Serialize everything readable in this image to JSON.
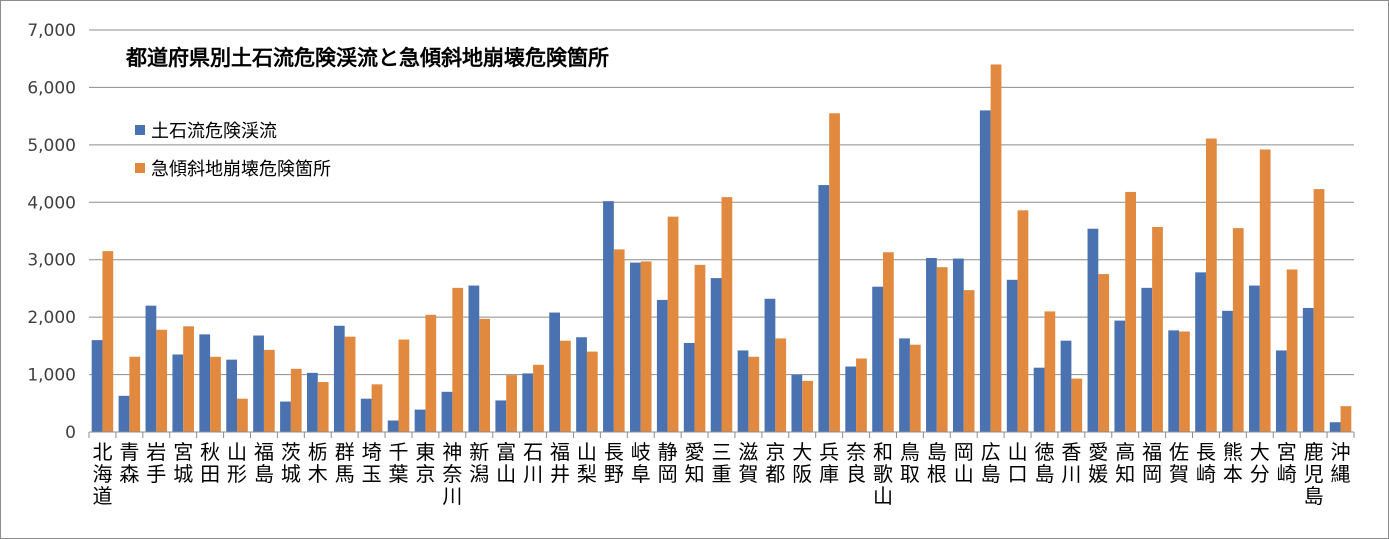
{
  "chart_data": {
    "type": "bar",
    "title": "都道府県別土石流危険渓流と急傾斜地崩壊危険箇所",
    "xlabel": "",
    "ylabel": "",
    "ylim": [
      0,
      7000
    ],
    "yticks": [
      "0",
      "1,000",
      "2,000",
      "3,000",
      "4,000",
      "5,000",
      "6,000",
      "7,000"
    ],
    "grid": true,
    "legend_position": "top-left",
    "colors": [
      "#4a72b0",
      "#e0893f"
    ],
    "categories": [
      "北海道",
      "青森",
      "岩手",
      "宮城",
      "秋田",
      "山形",
      "福島",
      "茨城",
      "栃木",
      "群馬",
      "埼玉",
      "千葉",
      "東京",
      "神奈川",
      "新潟",
      "富山",
      "石川",
      "福井",
      "山梨",
      "長野",
      "岐阜",
      "静岡",
      "愛知",
      "三重",
      "滋賀",
      "京都",
      "大阪",
      "兵庫",
      "奈良",
      "和歌山",
      "鳥取",
      "島根",
      "岡山",
      "広島",
      "山口",
      "徳島",
      "香川",
      "愛媛",
      "高知",
      "福岡",
      "佐賀",
      "長崎",
      "熊本",
      "大分",
      "宮崎",
      "鹿児島",
      "沖縄"
    ],
    "series": [
      {
        "name": "土石流危険渓流",
        "values": [
          1600,
          630,
          2200,
          1350,
          1700,
          1260,
          1680,
          530,
          1030,
          1850,
          580,
          200,
          390,
          700,
          2550,
          550,
          1020,
          2080,
          1650,
          4020,
          2950,
          2300,
          1550,
          2680,
          1420,
          2320,
          1000,
          4300,
          1140,
          2530,
          1630,
          3030,
          3020,
          5600,
          2650,
          1120,
          1590,
          3540,
          1940,
          2510,
          1770,
          2780,
          2110,
          2550,
          1420,
          2160,
          170
        ]
      },
      {
        "name": "急傾斜地崩壊危険箇所",
        "values": [
          3150,
          1310,
          1780,
          1840,
          1310,
          580,
          1430,
          1100,
          870,
          1660,
          830,
          1610,
          2040,
          2510,
          1970,
          990,
          1170,
          1590,
          1400,
          3180,
          2970,
          3750,
          2910,
          4090,
          1310,
          1630,
          890,
          5550,
          1280,
          3130,
          1520,
          2870,
          2470,
          6400,
          3860,
          2100,
          930,
          2750,
          4180,
          3570,
          1750,
          5110,
          3550,
          4920,
          2830,
          4230,
          450
        ]
      }
    ]
  }
}
